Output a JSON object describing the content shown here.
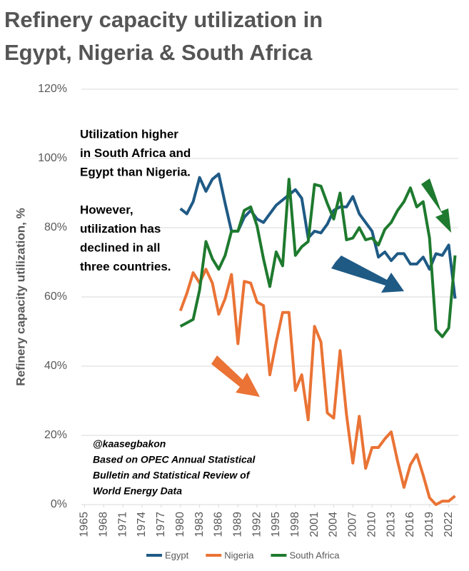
{
  "chart_data": {
    "type": "line",
    "title": [
      "Refinery capacity utilization in",
      "Egypt, Nigeria & South Africa"
    ],
    "y_label": "Refinery capacity utilization, %",
    "annotations": [
      [
        "Utilization higher",
        "in South Africa and",
        "Egypt than Nigeria.",
        "",
        "However,",
        "utilization has",
        "declined  in all",
        "three countries."
      ],
      [
        "@kaasegbakon",
        "Based on OPEC Annual Statistical",
        "Bulletin and Statistical Review of",
        "World Energy Data"
      ]
    ],
    "x": [
      1980,
      1981,
      1982,
      1983,
      1984,
      1985,
      1986,
      1987,
      1988,
      1989,
      1990,
      1991,
      1992,
      1993,
      1994,
      1995,
      1996,
      1997,
      1998,
      1999,
      2000,
      2001,
      2002,
      2003,
      2004,
      2005,
      2006,
      2007,
      2008,
      2009,
      2010,
      2011,
      2012,
      2013,
      2014,
      2015,
      2016,
      2017,
      2018,
      2019,
      2020,
      2021,
      2022,
      2023
    ],
    "series": [
      {
        "name": "Egypt",
        "color": "#1f5a85",
        "values": [
          85.5,
          84,
          87.5,
          94.5,
          90.5,
          94,
          95.5,
          87,
          79,
          79,
          83,
          85,
          82.5,
          81.5,
          84,
          86.5,
          88,
          89.5,
          91,
          88.5,
          77,
          79,
          78.5,
          81,
          85,
          86,
          86,
          89,
          84,
          81.5,
          79,
          71.5,
          73,
          70.5,
          72.5,
          72.5,
          69.5,
          69.5,
          71.5,
          68,
          72.5,
          72,
          75,
          59.5
        ]
      },
      {
        "name": "Nigeria",
        "color": "#ea7335",
        "values": [
          56,
          61,
          67,
          64,
          68,
          64,
          55,
          59.5,
          66.5,
          46.5,
          64.5,
          64,
          58.5,
          57.5,
          37.5,
          47,
          55.5,
          55.5,
          33,
          37.5,
          24.5,
          51.5,
          47,
          26.5,
          25,
          44.5,
          26,
          12,
          25.5,
          10.5,
          16.5,
          16.5,
          19,
          21,
          12.5,
          5,
          11.5,
          14.5,
          8.5,
          2,
          0,
          1,
          1,
          2.5
        ]
      },
      {
        "name": "South Africa",
        "color": "#1e7a2e",
        "values": [
          51.5,
          52.5,
          53.5,
          62,
          76,
          71,
          68,
          72,
          79,
          79,
          85,
          86,
          80.5,
          71,
          63,
          73,
          69,
          94,
          72,
          74.5,
          76,
          92.5,
          92,
          87,
          82.5,
          90,
          76.5,
          77,
          80,
          76.5,
          77,
          75,
          79.5,
          81.5,
          85,
          87.5,
          91.5,
          86,
          87.5,
          77,
          50.5,
          48.5,
          51,
          72
        ]
      }
    ],
    "xlim": [
      1964.5,
      2023.5
    ],
    "xticks": [
      1965,
      1968,
      1971,
      1974,
      1977,
      1980,
      1983,
      1986,
      1989,
      1992,
      1995,
      1998,
      2001,
      2004,
      2007,
      2010,
      2013,
      2016,
      2019,
      2022
    ],
    "ylim": [
      0,
      120
    ],
    "yticks": [
      {
        "value": 0,
        "label": "0%"
      },
      {
        "value": 20,
        "label": "20%"
      },
      {
        "value": 40,
        "label": "40%"
      },
      {
        "value": 60,
        "label": "60%"
      },
      {
        "value": 80,
        "label": "80%"
      },
      {
        "value": 100,
        "label": "100%"
      },
      {
        "value": 120,
        "label": "120%"
      }
    ],
    "grid": true,
    "legend": "bottom"
  }
}
